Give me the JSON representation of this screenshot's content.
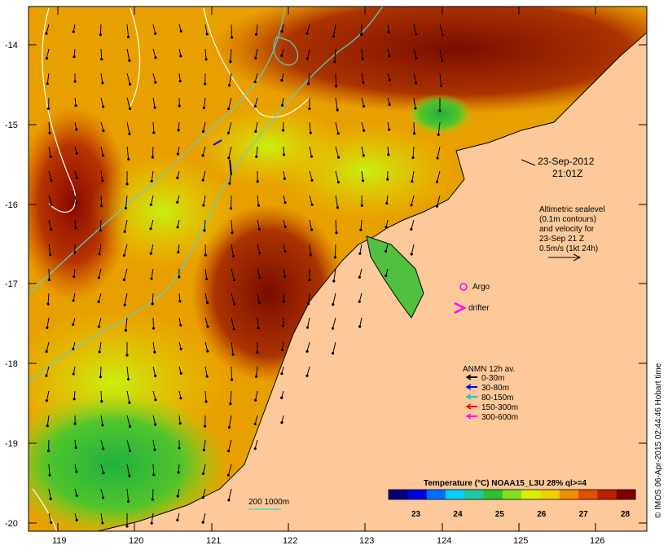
{
  "map": {
    "lon_ticks": [
      "119",
      "120",
      "121",
      "122",
      "123",
      "124",
      "125",
      "126"
    ],
    "lat_ticks": [
      "-14",
      "-15",
      "-16",
      "-17",
      "-18",
      "-19",
      "-20"
    ],
    "lon_range": [
      118.6,
      126.7
    ],
    "lat_range": [
      -20.1,
      -13.6
    ]
  },
  "timestamp": {
    "date": "23-Sep-2012",
    "time": "21:01Z"
  },
  "altimetry_note": {
    "line1": "Altimetric sealevel",
    "line2": "(0.1m contours)",
    "line3": "and velocity for",
    "line4": "23-Sep 21 Z",
    "line5": "0.5m/s (1kt 24h)"
  },
  "markers": {
    "argo_label": "Argo",
    "drifter_label": "drifter"
  },
  "anmn": {
    "title": "ANMN 12h av.",
    "items": [
      {
        "label": "0-30m",
        "color": "#000000"
      },
      {
        "label": "30-80m",
        "color": "#0000ff"
      },
      {
        "label": "80-150m",
        "color": "#00cccc"
      },
      {
        "label": "150-300m",
        "color": "#ff0000"
      },
      {
        "label": "300-600m",
        "color": "#ff00ff"
      }
    ]
  },
  "depth_legend": {
    "label": "200  1000m"
  },
  "colorbar": {
    "title": "Temperature (°C) NOAA15_L3U 28% ql>=4",
    "ticks": [
      "23",
      "24",
      "25",
      "26",
      "27",
      "28"
    ],
    "colors": [
      "#00007a",
      "#0000e0",
      "#0070ff",
      "#00d0ff",
      "#20c8a0",
      "#30c030",
      "#80e020",
      "#d8f000",
      "#f0d000",
      "#f09000",
      "#e05000",
      "#c02000",
      "#800000"
    ]
  },
  "credit": "© IMOS 06-Apr-2015 02:44:46 Hobart time",
  "colors": {
    "land": "#fec99a",
    "coast": "#000000",
    "contour_200": "#5cd0d0",
    "contour_ssh": "#ffffff"
  }
}
